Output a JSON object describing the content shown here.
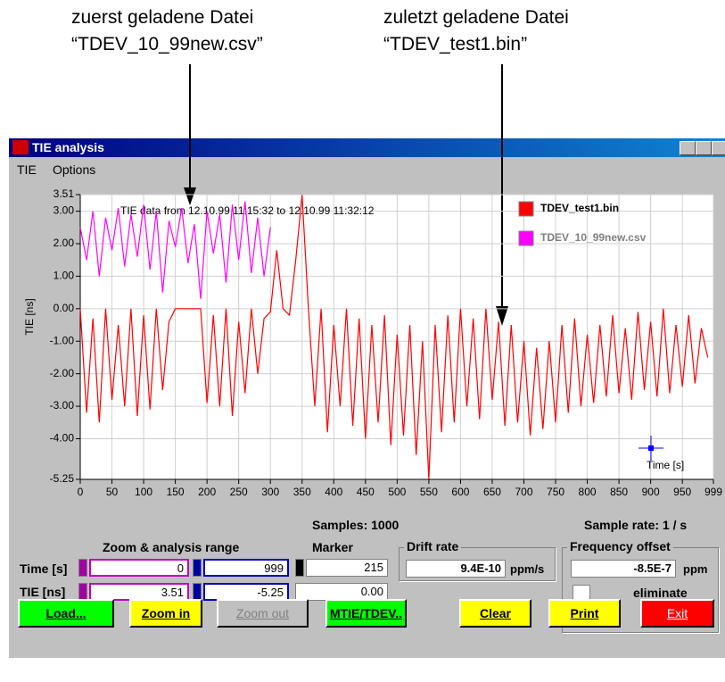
{
  "annotations": [
    {
      "line1": "zuerst geladene Datei",
      "line2": "“TDEV_10_99new.csv”"
    },
    {
      "line1": "zuletzt geladene Datei",
      "line2": "“TDEV_test1.bin”"
    }
  ],
  "window": {
    "title": "TIE  analysis",
    "menu": [
      "TIE",
      "Options"
    ]
  },
  "chart_data": {
    "type": "line",
    "annotation": "TIE data from  12.10.99 11:15:32  to  12.10.99 11:32:12",
    "ylabel": "TIE [ns]",
    "cursor_label": "Time [s]",
    "legend": "top-right",
    "grid": true,
    "xlim": [
      0,
      999
    ],
    "ylim": [
      -5.25,
      3.51
    ],
    "xticks": [
      0,
      50,
      100,
      150,
      200,
      250,
      300,
      350,
      400,
      450,
      500,
      550,
      600,
      650,
      700,
      750,
      800,
      850,
      900,
      950,
      999
    ],
    "yticks": [
      3.51,
      {
        "value": 3,
        "label": "3.00"
      },
      {
        "value": 2,
        "label": "2.00"
      },
      {
        "value": 1,
        "label": "1.00"
      },
      {
        "value": 0,
        "label": "0.00"
      },
      {
        "value": -1,
        "label": "-1.00"
      },
      {
        "value": -2,
        "label": "-2.00"
      },
      {
        "value": -3,
        "label": "-3.00"
      },
      {
        "value": -4,
        "label": "-4.00"
      },
      -5.25
    ],
    "x": [
      0,
      10,
      20,
      30,
      40,
      50,
      60,
      70,
      80,
      90,
      100,
      110,
      120,
      130,
      140,
      150,
      160,
      170,
      180,
      190,
      200,
      210,
      220,
      230,
      240,
      250,
      260,
      270,
      280,
      290,
      300,
      310,
      320,
      330,
      340,
      350,
      360,
      370,
      380,
      390,
      400,
      410,
      420,
      430,
      440,
      450,
      460,
      470,
      480,
      490,
      500,
      510,
      520,
      530,
      540,
      550,
      560,
      570,
      580,
      590,
      600,
      610,
      620,
      630,
      640,
      650,
      660,
      670,
      680,
      690,
      700,
      710,
      720,
      730,
      740,
      750,
      760,
      770,
      780,
      790,
      800,
      810,
      820,
      830,
      840,
      850,
      860,
      870,
      880,
      890,
      900,
      910,
      920,
      930,
      940,
      950,
      960,
      970,
      980,
      990
    ],
    "series": [
      {
        "name": "TDEV_test1.bin",
        "color": "#ff0000",
        "values": [
          0,
          -3.2,
          -0.3,
          -3.5,
          0,
          -2.8,
          -0.5,
          -3.0,
          0,
          -3.3,
          -0.2,
          -3.1,
          0,
          -2.5,
          -0.4,
          0,
          0,
          0,
          0,
          0,
          -2.9,
          -0.2,
          -3.0,
          0,
          -3.3,
          -0.4,
          -2.6,
          0,
          -2.0,
          -0.3,
          -0.1,
          1.8,
          0,
          -0.2,
          1.5,
          3.5,
          0,
          -3.0,
          0,
          -3.8,
          -0.5,
          -3.0,
          0,
          -3.6,
          -0.3,
          -4.0,
          -0.5,
          -3.5,
          -0.2,
          -4.2,
          -0.8,
          -3.9,
          -0.5,
          -4.5,
          -1.0,
          -5.25,
          -0.5,
          -3.8,
          -0.2,
          -3.5,
          0,
          -3.0,
          -0.3,
          -3.4,
          0,
          -2.8,
          -0.4,
          -3.6,
          -0.5,
          -3.5,
          -1.0,
          -3.9,
          -1.2,
          -3.7,
          -1.0,
          -3.5,
          -0.5,
          -3.2,
          -0.3,
          -3.0,
          -0.8,
          -2.9,
          -0.5,
          -2.7,
          -0.2,
          -2.6,
          -0.6,
          -2.8,
          -0.1,
          -2.5,
          -0.4,
          -2.7,
          0,
          -2.6,
          -0.5,
          -2.4,
          -0.2,
          -2.3,
          -0.6,
          -1.5
        ]
      },
      {
        "name": "TDEV_10_99new.csv",
        "color": "#ff00ff",
        "values": [
          2.5,
          1.5,
          3.0,
          1.0,
          2.8,
          1.8,
          3.1,
          1.3,
          2.9,
          1.6,
          3.2,
          1.2,
          3.0,
          0.5,
          2.7,
          1.9,
          3.1,
          1.4,
          2.6,
          0.3,
          3.0,
          1.7,
          2.9,
          0.8,
          3.2,
          1.5,
          3.3,
          1.1,
          2.8,
          1.0,
          2.5,
          null,
          null,
          null,
          null,
          null,
          null,
          null,
          null,
          null,
          null,
          null,
          null,
          null,
          null,
          null,
          null,
          null,
          null,
          null,
          null,
          null,
          null,
          null,
          null,
          null,
          null,
          null,
          null,
          null,
          null,
          null,
          null,
          null,
          null,
          null,
          null,
          null,
          null,
          null,
          null,
          null,
          null,
          null,
          null,
          null,
          null,
          null,
          null,
          null,
          null,
          null,
          null,
          null,
          null,
          null,
          null,
          null,
          null,
          null,
          null,
          null,
          null,
          null,
          null,
          null,
          null,
          null,
          null,
          null
        ]
      }
    ]
  },
  "panel": {
    "samples": "Samples: 1000",
    "sample_rate": "Sample rate:   1 / s",
    "zoom_title": "Zoom & analysis range",
    "marker_title": "Marker",
    "time_label": "Time [s]",
    "tie_label": "TIE [ns]",
    "time_from": "0",
    "time_to": "999",
    "time_marker": "215",
    "tie_from": "3.51",
    "tie_to": "-5.25",
    "tie_marker": "0.00",
    "drift_title": "Drift rate",
    "drift_value": "9.4E-10",
    "drift_unit": "ppm/s",
    "freq_title": "Frequency offset",
    "freq_value": "-8.5E-7",
    "freq_unit": "ppm",
    "eliminate": "eliminate"
  },
  "buttons": [
    "Load...",
    "Zoom in",
    "Zoom out",
    "MTIE/TDEV..",
    "Clear",
    "Print",
    "Exit"
  ]
}
